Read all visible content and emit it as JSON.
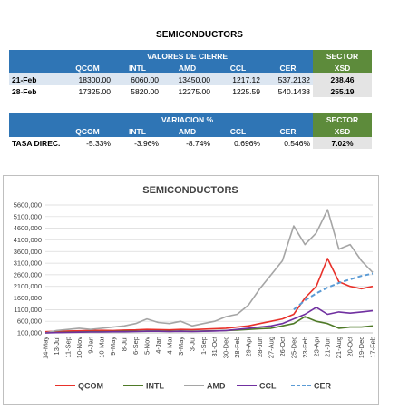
{
  "header": {
    "title": "SEMICONDUCTORS"
  },
  "table1": {
    "group": "VALORES DE CIERRE",
    "sector": "SECTOR",
    "columns": [
      "QCOM",
      "INTL",
      "AMD",
      "CCL",
      "CER",
      "XSD"
    ],
    "rows": [
      [
        "21-Feb",
        "18300.00",
        "6060.00",
        "13450.00",
        "1217.12",
        "537.2132",
        "238.46"
      ],
      [
        "28-Feb",
        "17325.00",
        "5820.00",
        "12275.00",
        "1225.59",
        "540.1438",
        "255.19"
      ]
    ]
  },
  "table2": {
    "group": "VARIACION %",
    "sector": "SECTOR",
    "columns": [
      "QCOM",
      "INTL",
      "AMD",
      "CCL",
      "CER",
      "XSD"
    ],
    "rows": [
      [
        "TASA DIREC.",
        "-5.33%",
        "-3.96%",
        "-8.74%",
        "0.696%",
        "0.546%",
        "7.02%"
      ]
    ]
  },
  "chart_data": {
    "type": "line",
    "title": "SEMICONDUCTORS",
    "categories": [
      "14-May",
      "13-Jul",
      "11-Sep",
      "10-Nov",
      "9-Jan",
      "10-Mar",
      "9-May",
      "8-Jul",
      "6-Sep",
      "5-Nov",
      "4-Jan",
      "4-Mar",
      "3-May",
      "3-Jul",
      "1-Sep",
      "31-Oct",
      "30-Dec",
      "28-Feb",
      "29-Apr",
      "28-Jun",
      "27-Aug",
      "26-Oct",
      "25-Dec",
      "23-Feb",
      "23-Apr",
      "21-Jun",
      "21-Aug",
      "20-Oct",
      "19-Dec",
      "17-Feb"
    ],
    "ylim": [
      100000,
      5600000
    ],
    "yticks": [
      {
        "value": 100000,
        "label": "100,000"
      },
      {
        "value": 600000,
        "label": "600,000"
      },
      {
        "value": 1100000,
        "label": "1100,000"
      },
      {
        "value": 1600000,
        "label": "1600,000"
      },
      {
        "value": 2100000,
        "label": "2100,000"
      },
      {
        "value": 2600000,
        "label": "2600,000"
      },
      {
        "value": 3100000,
        "label": "3100,000"
      },
      {
        "value": 3600000,
        "label": "3600,000"
      },
      {
        "value": 4100000,
        "label": "4100,000"
      },
      {
        "value": 4600000,
        "label": "4600,000"
      },
      {
        "value": 5100000,
        "label": "5100,000"
      },
      {
        "value": 5600000,
        "label": "5600,000"
      }
    ],
    "grid": true,
    "series": [
      {
        "name": "QCOM",
        "color": "#e8312a",
        "values": [
          150000,
          170000,
          180000,
          190000,
          200000,
          210000,
          200000,
          220000,
          230000,
          250000,
          240000,
          230000,
          250000,
          240000,
          260000,
          280000,
          300000,
          350000,
          400000,
          500000,
          600000,
          700000,
          900000,
          1600000,
          2100000,
          3300000,
          2300000,
          2100000,
          2000000,
          2100000
        ]
      },
      {
        "name": "INTL",
        "color": "#4f7a28",
        "values": [
          100000,
          120000,
          130000,
          140000,
          150000,
          150000,
          160000,
          170000,
          170000,
          180000,
          180000,
          170000,
          180000,
          170000,
          180000,
          190000,
          200000,
          220000,
          250000,
          280000,
          300000,
          400000,
          500000,
          800000,
          600000,
          500000,
          300000,
          350000,
          350000,
          400000
        ]
      },
      {
        "name": "AMD",
        "color": "#a5a5a5",
        "values": [
          100000,
          200000,
          250000,
          300000,
          250000,
          300000,
          350000,
          400000,
          500000,
          700000,
          550000,
          500000,
          600000,
          400000,
          500000,
          600000,
          800000,
          900000,
          1300000,
          2000000,
          2600000,
          3200000,
          4700000,
          3900000,
          4400000,
          5400000,
          3700000,
          3900000,
          3200000,
          2700000
        ]
      },
      {
        "name": "CCL",
        "color": "#7030a0",
        "values": [
          100000,
          110000,
          120000,
          130000,
          140000,
          140000,
          150000,
          150000,
          160000,
          170000,
          170000,
          160000,
          170000,
          160000,
          170000,
          180000,
          200000,
          250000,
          300000,
          350000,
          400000,
          500000,
          700000,
          900000,
          1200000,
          900000,
          1000000,
          950000,
          1000000,
          1050000
        ]
      },
      {
        "name": "CER",
        "color": "#5b9bd5",
        "dashed": true,
        "values": [
          null,
          null,
          null,
          null,
          null,
          null,
          null,
          null,
          null,
          null,
          null,
          null,
          null,
          null,
          null,
          null,
          null,
          null,
          null,
          null,
          null,
          null,
          1100000,
          1500000,
          1800000,
          2050000,
          2250000,
          2400000,
          2550000,
          2650000
        ]
      }
    ]
  }
}
